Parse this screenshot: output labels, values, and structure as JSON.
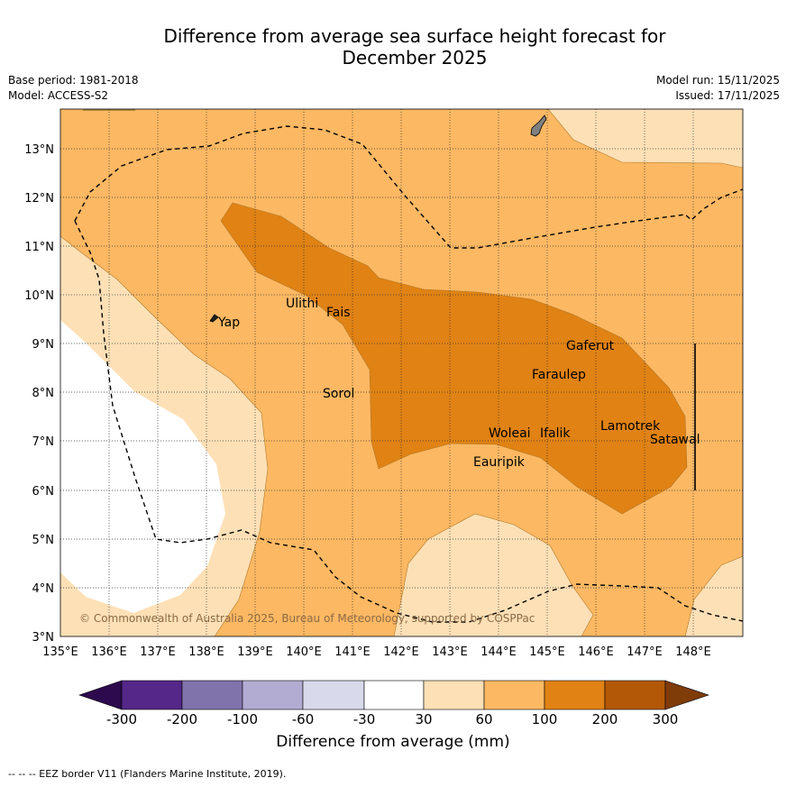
{
  "title_line1": "Difference from average sea surface height forecast for",
  "title_line2": "December 2025",
  "base_period": "Base period: 1981-2018",
  "model": "Model: ACCESS-S2",
  "model_run": "Model run: 15/11/2025",
  "issued": "Issued: 17/11/2025",
  "copyright": "© Commonwealth of Australia 2025, Bureau of Meteorology, supported by COSPPac",
  "lat_labels": [
    "13°N",
    "12°N",
    "11°N",
    "10°N",
    "9°N",
    "8°N",
    "7°N",
    "6°N",
    "5°N",
    "4°N",
    "3°N"
  ],
  "lon_labels": [
    "135°E",
    "136°E",
    "137°E",
    "138°E",
    "139°E",
    "140°E",
    "141°E",
    "142°E",
    "143°E",
    "144°E",
    "145°E",
    "146°E",
    "147°E",
    "148°E"
  ],
  "places": [
    "Yap",
    "Ulithi",
    "Fais",
    "Gaferut",
    "Faraulep",
    "Sorol",
    "Lamotrek",
    "Satawal",
    "Woleai",
    "Ifalik",
    "Eauripik"
  ],
  "colorbar": {
    "ticks": [
      "-300",
      "-200",
      "-100",
      "-60",
      "-30",
      "30",
      "60",
      "100",
      "200",
      "300"
    ],
    "title": "Difference from average (mm)",
    "colors": {
      "below_-300": "#2d0a4d",
      "-300_-200": "#542788",
      "-200_-100": "#8073ac",
      "-100_-60": "#b2abd2",
      "-60_-30": "#d8daeb",
      "-30_30": "#ffffff",
      "30_60": "#fee0b6",
      "60_100": "#fdb863",
      "100_200": "#e08214",
      "200_300": "#b35806",
      "above_300": "#7f3b08"
    }
  },
  "footer": "--  --  -- EEZ border V11 (Flanders Marine Institute, 2019)."
}
